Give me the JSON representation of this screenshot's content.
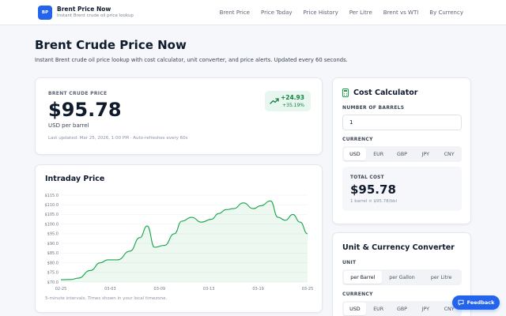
{
  "header": {
    "logo_text": "BP",
    "title": "Brent Price Now",
    "subtitle": "Instant Brent crude oil price lookup",
    "nav": [
      "Brent Price",
      "Price Today",
      "Price History",
      "Per Litre",
      "Brent vs WTI",
      "By Currency"
    ]
  },
  "page": {
    "title": "Brent Crude Price Now",
    "subtitle": "Instant Brent crude oil price lookup with cost calculator, unit converter, and price alerts. Updated every 60 seconds."
  },
  "price_card": {
    "label": "BRENT CRUDE PRICE",
    "price": "$95.78",
    "unit": "USD per barrel",
    "change_abs": "+24.93",
    "change_pct": "+35.19%",
    "updated": "Last updated: Mar 25, 2026, 1:00 PM · Auto-refreshes every 60s",
    "accent_up": "#15803d"
  },
  "chart_card": {
    "title": "Intraday Price",
    "footnote": "5-minute intervals. Times shown in your local timezone.",
    "line_color": "#16a34a"
  },
  "chart_data": {
    "type": "area",
    "title": "Intraday Price",
    "y_ticks": [
      "$115.0",
      "$110.0",
      "$105.0",
      "$100.0",
      "$95.0",
      "$90.0",
      "$85.0",
      "$80.0",
      "$75.0",
      "$70.0"
    ],
    "x_ticks": [
      "02-25",
      "03-03",
      "03-09",
      "03-13",
      "03-19",
      "03-25"
    ],
    "ylim": [
      70,
      115
    ],
    "x": [
      0,
      4,
      7,
      12,
      16,
      19,
      23,
      28,
      32,
      35,
      38,
      42,
      46,
      49,
      53,
      57,
      61,
      64,
      67,
      70,
      74,
      78,
      81,
      85,
      88,
      91,
      94,
      97,
      100
    ],
    "values": [
      71.2,
      71.3,
      72.0,
      76.0,
      80.0,
      81.5,
      81.5,
      86.0,
      93.0,
      99.0,
      88.0,
      89.0,
      95.0,
      101.5,
      103.5,
      101.0,
      102.5,
      105.5,
      107.5,
      108.0,
      111.0,
      108.0,
      109.5,
      112.0,
      103.5,
      102.0,
      105.0,
      101.0,
      95.0
    ]
  },
  "calculator": {
    "title": "Cost Calculator",
    "barrels_label": "NUMBER OF BARRELS",
    "barrels_value": "1",
    "currency_label": "CURRENCY",
    "currencies": [
      "USD",
      "EUR",
      "GBP",
      "JPY",
      "CNY"
    ],
    "selected_currency": "USD",
    "total_label": "TOTAL COST",
    "total_value": "$95.78",
    "total_note": "1 barrel × $95.78/bbl"
  },
  "converter": {
    "title": "Unit & Currency Converter",
    "unit_label": "UNIT",
    "units": [
      "per Barrel",
      "per Gallon",
      "per Litre"
    ],
    "selected_unit": "per Barrel",
    "currency_label": "CURRENCY",
    "currencies": [
      "USD",
      "EUR",
      "GBP",
      "JPY",
      "CNY"
    ],
    "selected_currency": "USD"
  },
  "feedback": {
    "label": "Feedback"
  },
  "colors": {
    "primary": "#2463eb",
    "positive": "#15803d",
    "background": "#f5f7fa"
  }
}
